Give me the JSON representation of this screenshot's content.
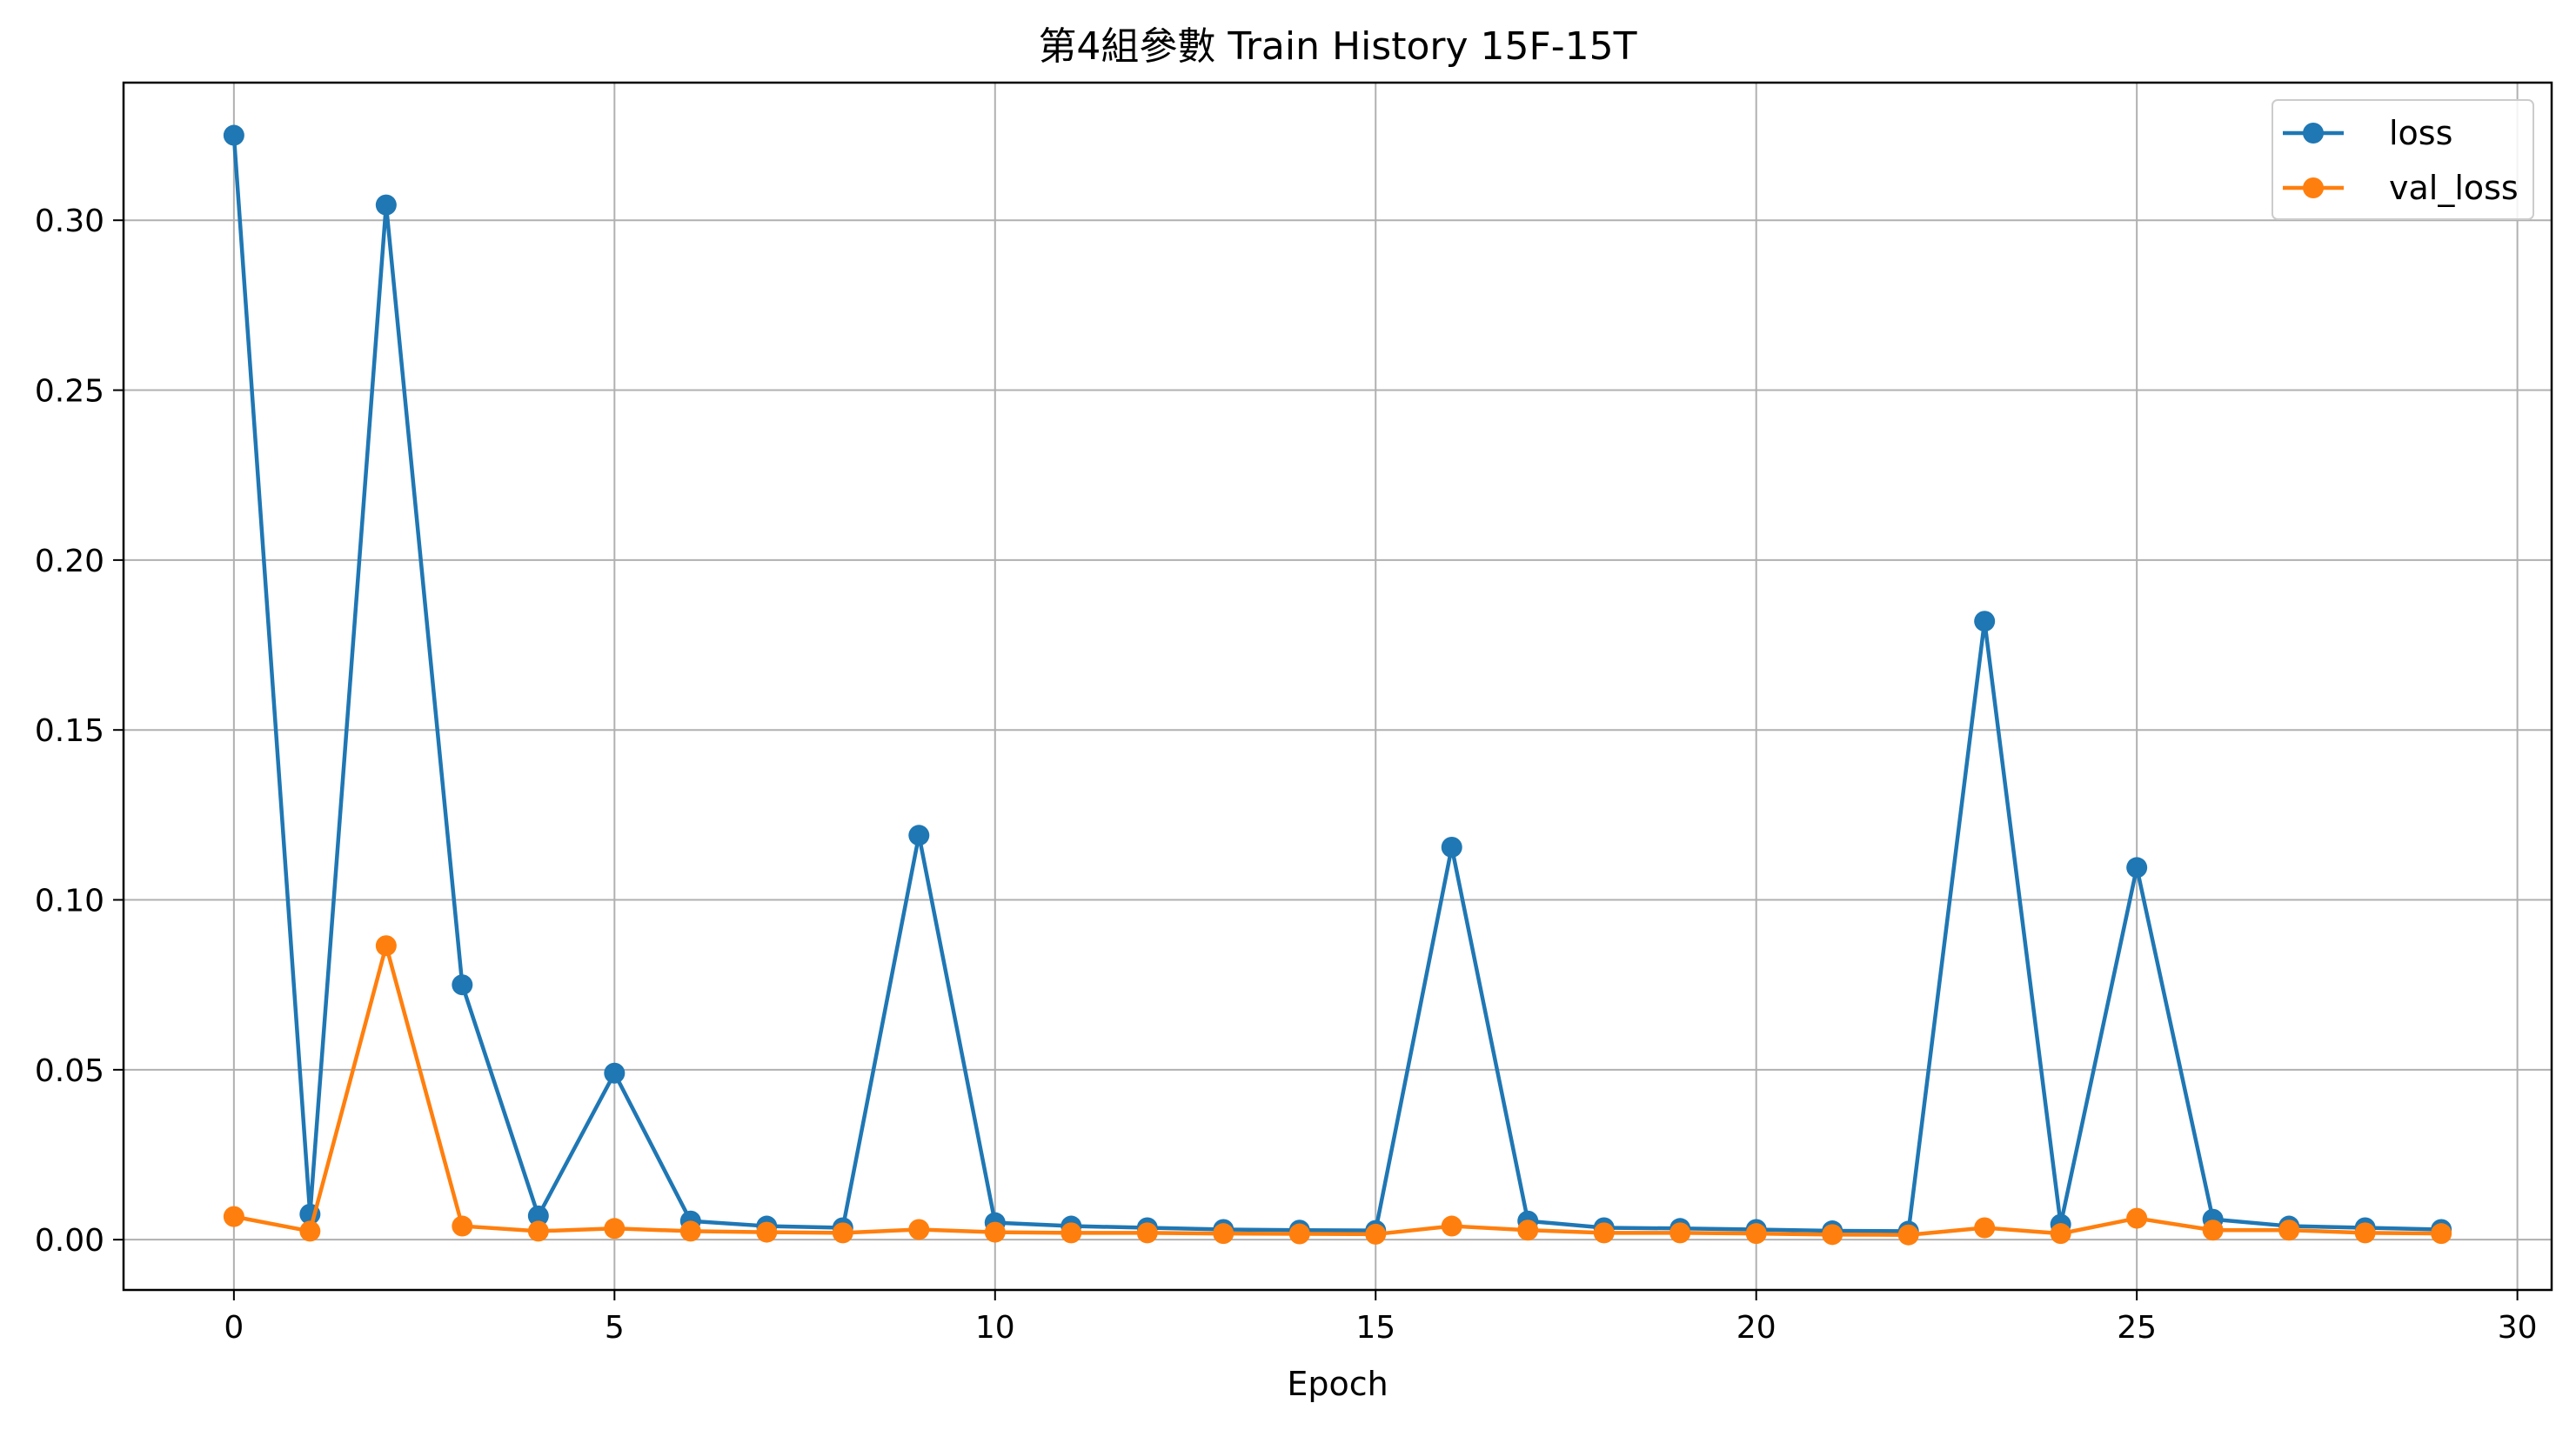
{
  "chart_data": {
    "type": "line",
    "title": "第4組參數 Train History 15F-15T",
    "xlabel": "Epoch",
    "ylabel": "",
    "xlim": [
      -1.45,
      30.45
    ],
    "ylim": [
      -0.0148,
      0.3405
    ],
    "xticks": [
      0,
      5,
      10,
      15,
      20,
      25,
      30
    ],
    "yticks": [
      0.0,
      0.05,
      0.1,
      0.15,
      0.2,
      0.25,
      0.3
    ],
    "ytick_labels": [
      "0.00",
      "0.05",
      "0.10",
      "0.15",
      "0.20",
      "0.25",
      "0.30"
    ],
    "grid": true,
    "legend_position": "top-right",
    "x": [
      0,
      1,
      2,
      3,
      4,
      5,
      6,
      7,
      8,
      9,
      10,
      11,
      12,
      13,
      14,
      15,
      16,
      17,
      18,
      19,
      20,
      21,
      22,
      23,
      24,
      25,
      26,
      27,
      28,
      29
    ],
    "series": [
      {
        "name": "loss",
        "color": "#1f77b4",
        "marker": "circle",
        "values": [
          0.325,
          0.0075,
          0.3045,
          0.075,
          0.007,
          0.049,
          0.0055,
          0.004,
          0.0035,
          0.119,
          0.005,
          0.004,
          0.0035,
          0.003,
          0.0028,
          0.0027,
          0.1155,
          0.0055,
          0.0035,
          0.0033,
          0.003,
          0.0026,
          0.0025,
          0.182,
          0.0045,
          0.1095,
          0.006,
          0.004,
          0.0035,
          0.003
        ]
      },
      {
        "name": "val_loss",
        "color": "#ff7f0e",
        "marker": "circle",
        "values": [
          0.0068,
          0.0025,
          0.0865,
          0.004,
          0.0025,
          0.0033,
          0.0025,
          0.0022,
          0.002,
          0.003,
          0.0022,
          0.002,
          0.002,
          0.0018,
          0.0017,
          0.0016,
          0.004,
          0.0028,
          0.002,
          0.002,
          0.0018,
          0.0015,
          0.0014,
          0.0035,
          0.0018,
          0.0063,
          0.0028,
          0.0028,
          0.002,
          0.0018
        ]
      }
    ]
  }
}
